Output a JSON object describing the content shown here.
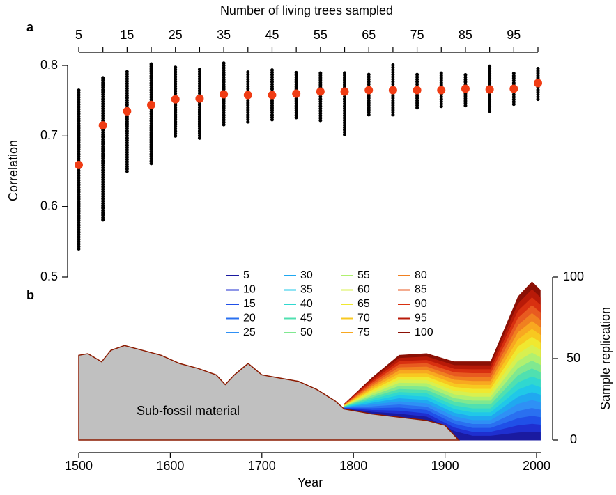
{
  "chart_data": [
    {
      "type": "dot-range",
      "panel": "a",
      "title": "Number of living trees sampled",
      "ylabel": "Correlation",
      "categories": [
        5,
        10,
        15,
        20,
        25,
        30,
        35,
        40,
        45,
        50,
        55,
        60,
        65,
        70,
        75,
        80,
        85,
        90,
        95,
        100
      ],
      "xlim": [
        5,
        100
      ],
      "xticks": [
        5,
        15,
        25,
        35,
        45,
        55,
        65,
        75,
        85,
        95
      ],
      "xminorticks": [
        10,
        20,
        30,
        40,
        50,
        60,
        70,
        80,
        90,
        100
      ],
      "ylim": [
        0.5,
        0.8
      ],
      "yticks": [
        0.5,
        0.6,
        0.7,
        0.8
      ],
      "ranges": {
        "color": "#000000",
        "low": [
          0.54,
          0.581,
          0.65,
          0.661,
          0.7,
          0.697,
          0.716,
          0.72,
          0.723,
          0.726,
          0.722,
          0.702,
          0.73,
          0.73,
          0.74,
          0.742,
          0.743,
          0.735,
          0.745,
          0.752
        ],
        "high": [
          0.765,
          0.785,
          0.792,
          0.805,
          0.8,
          0.796,
          0.805,
          0.793,
          0.795,
          0.79,
          0.792,
          0.79,
          0.79,
          0.802,
          0.79,
          0.792,
          0.788,
          0.8,
          0.79,
          0.798
        ]
      },
      "means": {
        "color": "#f03c14",
        "values": [
          0.659,
          0.715,
          0.735,
          0.744,
          0.752,
          0.753,
          0.759,
          0.758,
          0.758,
          0.76,
          0.763,
          0.763,
          0.765,
          0.765,
          0.765,
          0.765,
          0.767,
          0.766,
          0.767,
          0.775
        ]
      }
    },
    {
      "type": "area",
      "panel": "b",
      "xlabel": "Year",
      "y2label": "Sample replication",
      "annotation": "Sub-fossil material",
      "xlim": [
        1500,
        2005
      ],
      "xticks": [
        1500,
        1600,
        1700,
        1800,
        1900,
        2000
      ],
      "ylim": [
        0,
        100
      ],
      "yticks": [
        0,
        50,
        100
      ],
      "fossil": {
        "color": "#c0c0c0",
        "edge": "#8b1a00",
        "x": [
          1500,
          1510,
          1525,
          1535,
          1550,
          1570,
          1590,
          1610,
          1630,
          1650,
          1660,
          1670,
          1685,
          1700,
          1720,
          1740,
          1760,
          1780,
          1790,
          1820,
          1850,
          1880,
          1900,
          1910,
          1915
        ],
        "values": [
          52,
          53,
          48,
          55,
          58,
          55,
          52,
          47,
          44,
          40,
          34,
          40,
          47,
          40,
          38,
          36,
          31,
          24,
          19,
          16,
          14,
          12,
          9,
          3,
          0
        ]
      },
      "x": [
        1790,
        1820,
        1850,
        1880,
        1910,
        1930,
        1950,
        1965,
        1980,
        1995,
        2004
      ],
      "series": [
        {
          "name": "5",
          "color": "#1a1aa0",
          "values": [
            19.2,
            17.1,
            15.9,
            14.1,
            5.3,
            2.4,
            2.4,
            3.4,
            4.4,
            4.9,
            4.6
          ]
        },
        {
          "name": "10",
          "color": "#1f2fd0",
          "values": [
            19.3,
            18.2,
            17.8,
            16.1,
            7.5,
            4.8,
            4.8,
            6.8,
            8.8,
            9.7,
            9.2
          ]
        },
        {
          "name": "15",
          "color": "#2050e8",
          "values": [
            19.5,
            19.3,
            19.7,
            18.2,
            9.8,
            7.2,
            7.2,
            10.2,
            13.2,
            14.6,
            13.8
          ]
        },
        {
          "name": "20",
          "color": "#2a70f0",
          "values": [
            19.6,
            20.4,
            21.6,
            20.2,
            12.0,
            9.6,
            9.6,
            13.6,
            17.6,
            19.4,
            18.4
          ]
        },
        {
          "name": "25",
          "color": "#2f90f5",
          "values": [
            19.8,
            21.5,
            23.5,
            22.3,
            14.3,
            12.0,
            12.0,
            17.0,
            22.0,
            24.3,
            23.0
          ]
        },
        {
          "name": "30",
          "color": "#20a8f0",
          "values": [
            19.9,
            22.6,
            25.4,
            24.3,
            16.5,
            14.4,
            14.4,
            20.4,
            26.4,
            29.1,
            27.6
          ]
        },
        {
          "name": "35",
          "color": "#20c8e8",
          "values": [
            20.1,
            23.7,
            27.3,
            26.4,
            18.8,
            16.8,
            16.8,
            23.8,
            30.8,
            34.0,
            32.2
          ]
        },
        {
          "name": "40",
          "color": "#30d8d0",
          "values": [
            20.2,
            24.8,
            29.2,
            28.4,
            21.0,
            19.2,
            19.2,
            27.2,
            35.2,
            38.8,
            36.8
          ]
        },
        {
          "name": "45",
          "color": "#50e0b0",
          "values": [
            20.4,
            25.9,
            31.1,
            30.5,
            23.3,
            21.6,
            21.6,
            30.6,
            39.6,
            43.7,
            41.4
          ]
        },
        {
          "name": "50",
          "color": "#80e890",
          "values": [
            20.5,
            27.0,
            33.0,
            32.5,
            25.5,
            24.0,
            24.0,
            34.0,
            44.0,
            48.5,
            46.0
          ]
        },
        {
          "name": "55",
          "color": "#b0f070",
          "values": [
            20.7,
            28.1,
            34.9,
            34.6,
            27.8,
            26.4,
            26.4,
            37.4,
            48.4,
            53.4,
            50.6
          ]
        },
        {
          "name": "60",
          "color": "#d8f050",
          "values": [
            20.8,
            29.2,
            36.8,
            36.6,
            30.0,
            28.8,
            28.8,
            40.8,
            52.8,
            58.2,
            55.2
          ]
        },
        {
          "name": "65",
          "color": "#f0e830",
          "values": [
            21.0,
            30.3,
            38.7,
            38.7,
            32.3,
            31.2,
            31.2,
            44.2,
            57.2,
            63.1,
            59.8
          ]
        },
        {
          "name": "70",
          "color": "#f8c820",
          "values": [
            21.1,
            31.4,
            40.6,
            40.7,
            34.5,
            33.6,
            33.6,
            47.6,
            61.6,
            67.9,
            64.4
          ]
        },
        {
          "name": "75",
          "color": "#f8a820",
          "values": [
            21.3,
            32.5,
            42.5,
            42.8,
            36.8,
            36.0,
            36.0,
            51.0,
            66.0,
            72.8,
            69.0
          ]
        },
        {
          "name": "80",
          "color": "#f08020",
          "values": [
            21.4,
            33.6,
            44.4,
            44.8,
            39.0,
            38.4,
            38.4,
            54.4,
            70.4,
            77.6,
            73.6
          ]
        },
        {
          "name": "85",
          "color": "#e85a20",
          "values": [
            21.6,
            34.7,
            46.3,
            46.9,
            41.3,
            40.8,
            40.8,
            57.8,
            74.8,
            82.5,
            78.2
          ]
        },
        {
          "name": "90",
          "color": "#d83010",
          "values": [
            21.7,
            35.8,
            48.2,
            48.9,
            43.5,
            43.2,
            43.2,
            61.2,
            79.2,
            87.3,
            82.8
          ]
        },
        {
          "name": "95",
          "color": "#b81a08",
          "values": [
            21.9,
            36.9,
            50.1,
            51.0,
            45.8,
            45.6,
            45.6,
            64.6,
            83.6,
            92.2,
            87.4
          ]
        },
        {
          "name": "100",
          "color": "#8b1005",
          "values": [
            22.0,
            38.0,
            52.0,
            53.0,
            48.0,
            48.0,
            48.0,
            68.0,
            88.0,
            97.0,
            92.0
          ]
        }
      ]
    }
  ]
}
